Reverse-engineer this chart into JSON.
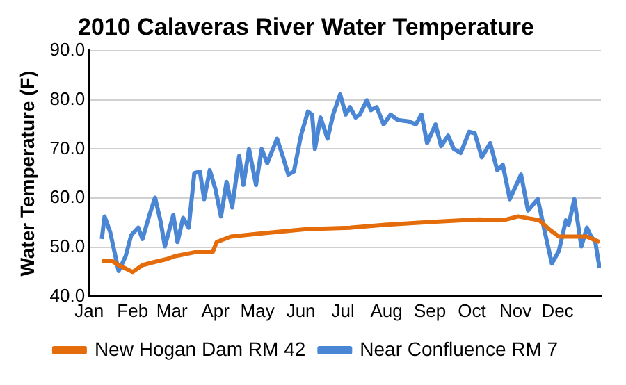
{
  "chart_data": {
    "type": "line",
    "title": "2010 Calaveras River Water Temperature",
    "ylabel": "Water Temperature (F)",
    "xlim": [
      "2010-01-01",
      "2011-01-01"
    ],
    "xticks": [
      {
        "value": "2010-01-01",
        "label": "Jan"
      },
      {
        "value": "2010-02-01",
        "label": "Feb"
      },
      {
        "value": "2010-03-01",
        "label": "Mar"
      },
      {
        "value": "2010-04-01",
        "label": "Apr"
      },
      {
        "value": "2010-05-01",
        "label": "May"
      },
      {
        "value": "2010-06-01",
        "label": "Jun"
      },
      {
        "value": "2010-07-01",
        "label": "Jul"
      },
      {
        "value": "2010-08-01",
        "label": "Aug"
      },
      {
        "value": "2010-09-01",
        "label": "Sep"
      },
      {
        "value": "2010-10-01",
        "label": "Oct"
      },
      {
        "value": "2010-11-01",
        "label": "Nov"
      },
      {
        "value": "2010-12-01",
        "label": "Dec"
      }
    ],
    "ylim": [
      40,
      90
    ],
    "yticks": [
      {
        "value": 40,
        "label": "40.0"
      },
      {
        "value": 50,
        "label": "50.0"
      },
      {
        "value": 60,
        "label": "60.0"
      },
      {
        "value": 70,
        "label": "70.0"
      },
      {
        "value": 80,
        "label": "80.0"
      },
      {
        "value": 90,
        "label": "90.0"
      }
    ],
    "grid": "y",
    "legend": "bottom",
    "marker": "none",
    "line_style": "solid",
    "series": [
      {
        "name": "New Hogan Dam RM 42",
        "color": "#e46c0a",
        "x": [
          "2010-01-10",
          "2010-01-17",
          "2010-01-22",
          "2010-02-01",
          "2010-02-08",
          "2010-02-16",
          "2010-02-25",
          "2010-03-03",
          "2010-03-17",
          "2010-03-30",
          "2010-04-02",
          "2010-04-12",
          "2010-05-02",
          "2010-06-05",
          "2010-07-06",
          "2010-07-31",
          "2010-09-03",
          "2010-10-06",
          "2010-10-23",
          "2010-11-03",
          "2010-11-18",
          "2010-11-25",
          "2010-12-02",
          "2010-12-12",
          "2010-12-22",
          "2010-12-31"
        ],
        "values": [
          47.3,
          47.3,
          46.4,
          45,
          46.4,
          47,
          47.6,
          48.2,
          49,
          49,
          51.1,
          52.2,
          52.8,
          53.7,
          54,
          54.6,
          55.2,
          55.7,
          55.5,
          56.3,
          55.5,
          53.7,
          52.2,
          52.2,
          52.2,
          51.1
        ]
      },
      {
        "name": "Near Confluence RM 7",
        "color": "#4a86d4",
        "x": [
          "2010-01-10",
          "2010-01-12",
          "2010-01-16",
          "2010-01-22",
          "2010-01-27",
          "2010-01-31",
          "2010-02-05",
          "2010-02-08",
          "2010-02-13",
          "2010-02-17",
          "2010-02-21",
          "2010-02-24",
          "2010-03-02",
          "2010-03-05",
          "2010-03-09",
          "2010-03-13",
          "2010-03-17",
          "2010-03-21",
          "2010-03-24",
          "2010-03-28",
          "2010-04-01",
          "2010-04-05",
          "2010-04-09",
          "2010-04-13",
          "2010-04-18",
          "2010-04-21",
          "2010-04-25",
          "2010-04-30",
          "2010-05-04",
          "2010-05-08",
          "2010-05-15",
          "2010-05-19",
          "2010-05-23",
          "2010-05-27",
          "2010-06-01",
          "2010-06-06",
          "2010-06-09",
          "2010-06-11",
          "2010-06-15",
          "2010-06-20",
          "2010-06-24",
          "2010-06-29",
          "2010-07-03",
          "2010-07-06",
          "2010-07-10",
          "2010-07-13",
          "2010-07-18",
          "2010-07-21",
          "2010-07-25",
          "2010-07-30",
          "2010-08-04",
          "2010-08-09",
          "2010-08-17",
          "2010-08-22",
          "2010-08-26",
          "2010-08-30",
          "2010-09-05",
          "2010-09-09",
          "2010-09-14",
          "2010-09-18",
          "2010-09-23",
          "2010-09-29",
          "2010-10-03",
          "2010-10-08",
          "2010-10-14",
          "2010-10-19",
          "2010-10-23",
          "2010-10-28",
          "2010-11-05",
          "2010-11-10",
          "2010-11-17",
          "2010-11-22",
          "2010-11-27",
          "2010-12-02",
          "2010-12-07",
          "2010-12-09",
          "2010-12-13",
          "2010-12-18",
          "2010-12-22",
          "2010-12-25",
          "2010-12-28",
          "2010-12-31"
        ],
        "values": [
          51.7,
          56.3,
          53.1,
          45.2,
          48.2,
          52.5,
          54,
          51.7,
          56.6,
          60.1,
          55.2,
          50.2,
          56.6,
          51.1,
          56,
          54,
          65.1,
          65.4,
          59.8,
          65.7,
          61.9,
          56.3,
          63.3,
          58.1,
          68.6,
          62.7,
          70,
          62.7,
          70,
          67.1,
          72.1,
          68.6,
          64.8,
          65.4,
          72.7,
          77.6,
          77,
          70,
          76.4,
          72.1,
          77,
          81.1,
          77,
          78.5,
          76.4,
          77,
          79.9,
          77.9,
          78.5,
          75,
          77,
          75.9,
          75.6,
          75,
          77,
          71.2,
          75,
          70.6,
          72.7,
          70,
          69.2,
          73.5,
          73.2,
          68.3,
          71.2,
          65.7,
          66.8,
          59.8,
          64.8,
          57.5,
          59.8,
          53.1,
          46.7,
          49.3,
          55.5,
          54.6,
          59.8,
          50.2,
          54,
          52.2,
          51.1,
          45.8
        ]
      }
    ]
  }
}
